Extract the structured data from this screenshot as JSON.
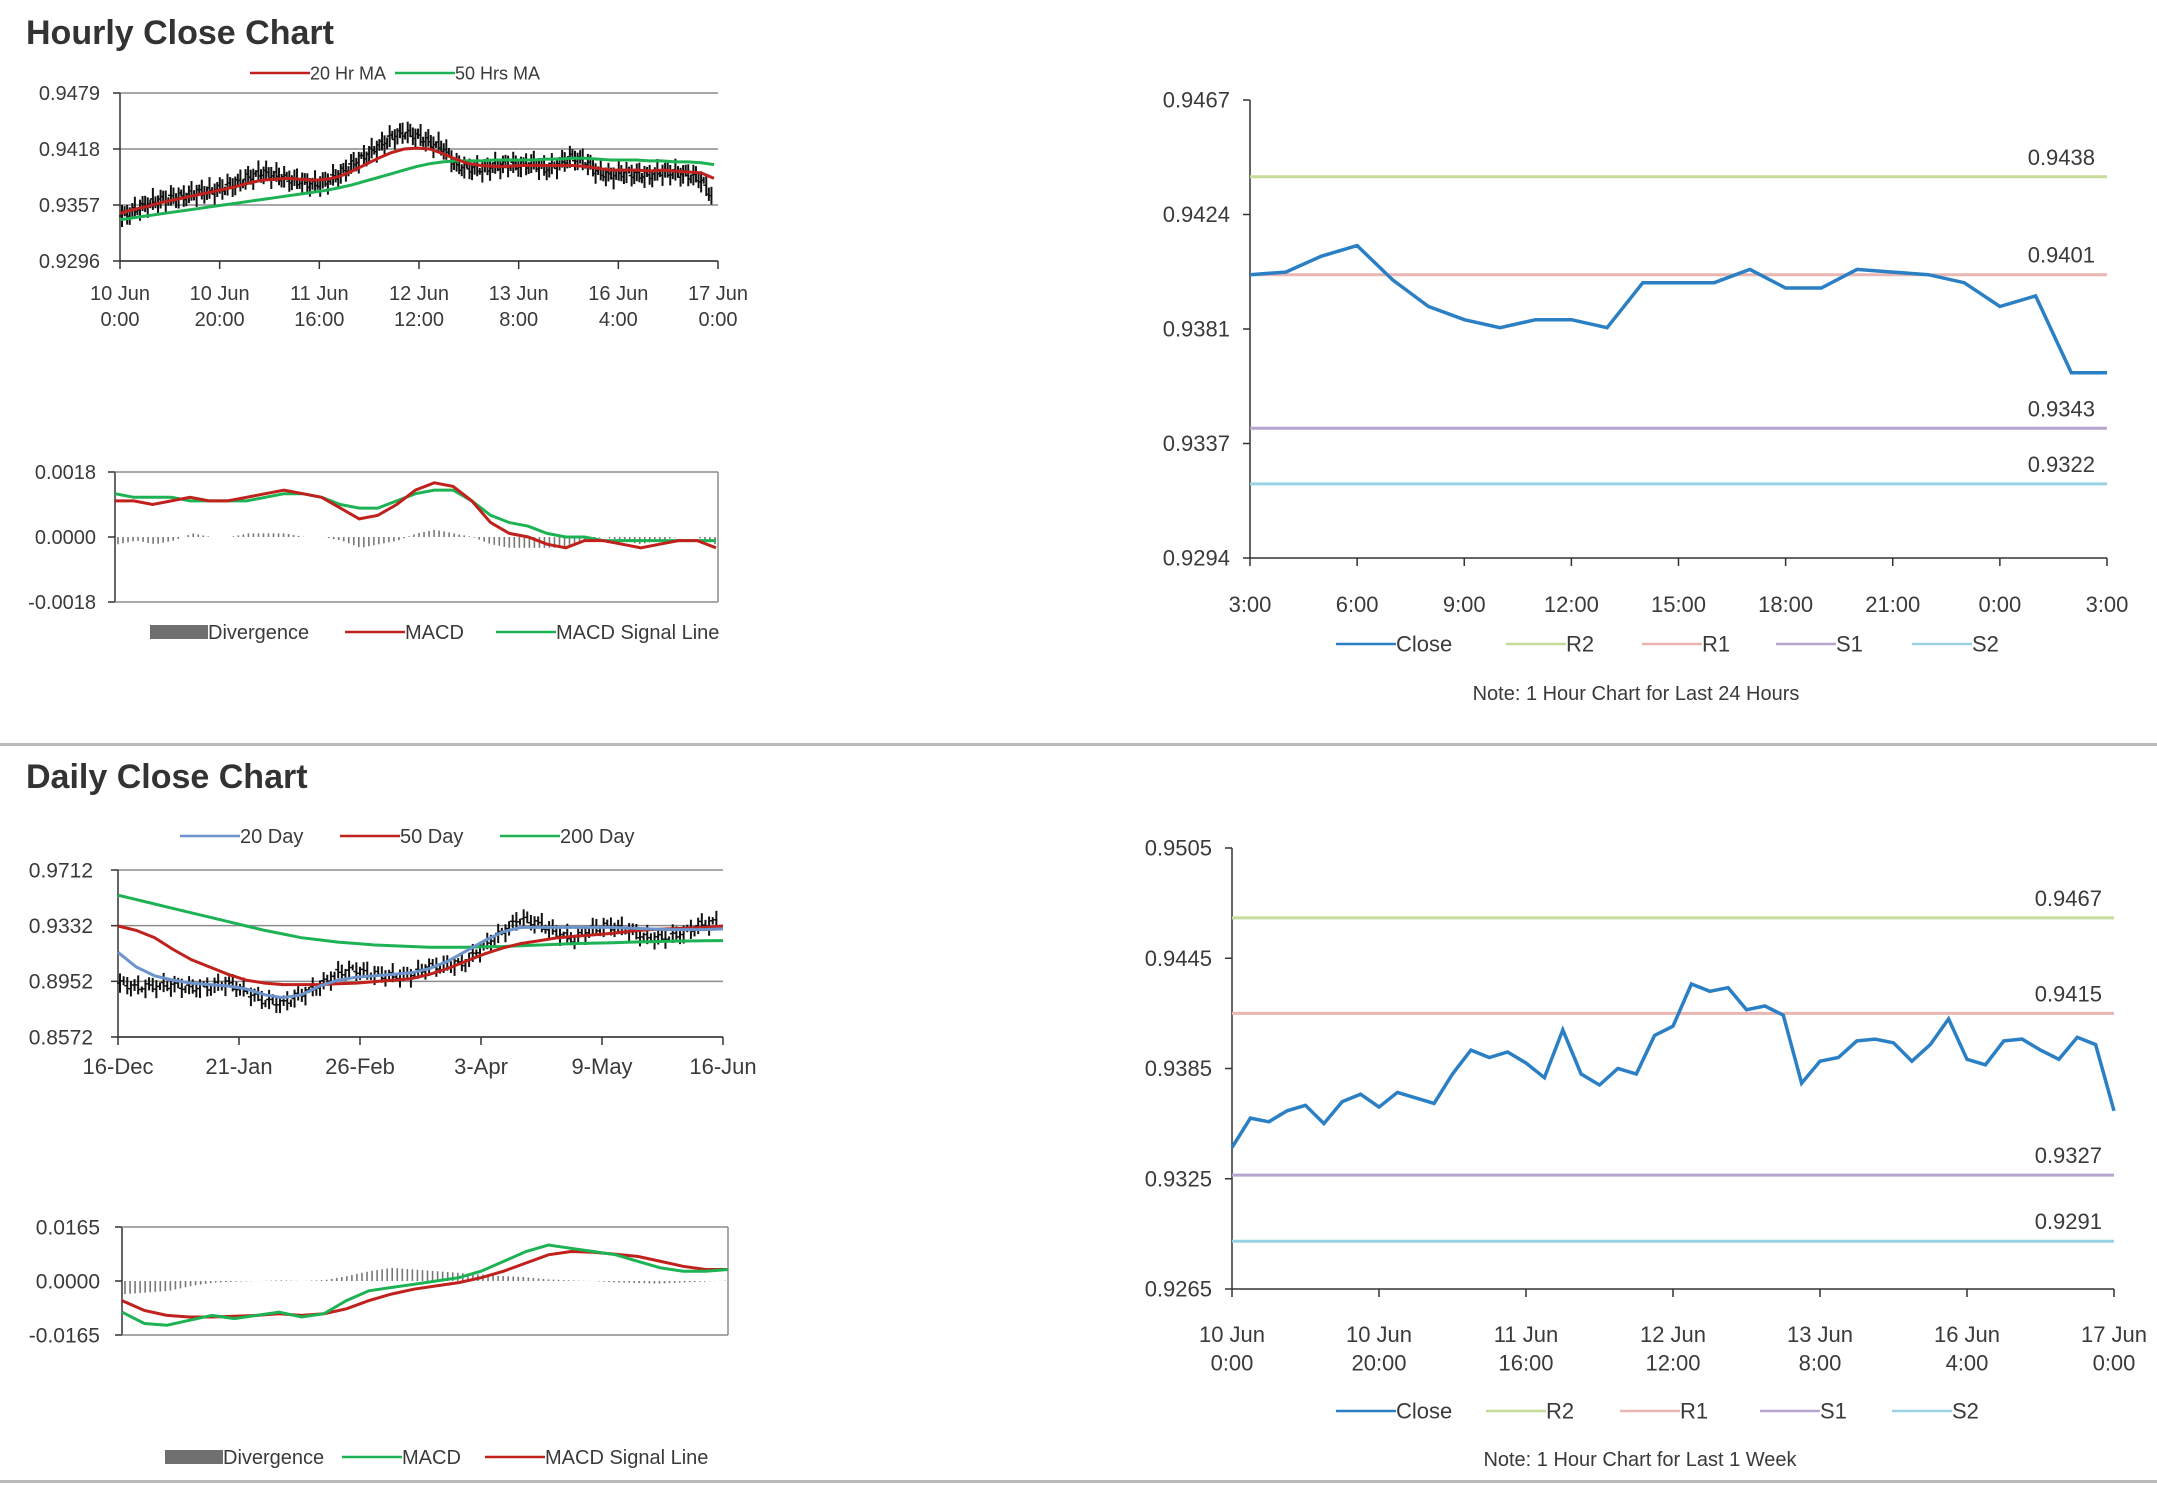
{
  "sections": {
    "hourly_title": "Hourly Close Chart",
    "daily_title": "Daily Close Chart"
  },
  "colors": {
    "red": "#c0211c",
    "green": "#1db254",
    "blue": "#2b7fc4",
    "lightblue": "#6c94cc",
    "price": "#111111",
    "r2": "#c5dc9b",
    "r1": "#eab6b3",
    "s1": "#b6a5cf",
    "s2": "#99d3e3",
    "grid": "#8c8c8c",
    "divergence": "#6f6f6f"
  },
  "chart_data": [
    {
      "id": "hourly_price",
      "type": "line",
      "description": "Hourly candlestick price with moving averages",
      "y_ticks": [
        "0.9479",
        "0.9418",
        "0.9357",
        "0.9296"
      ],
      "ylim": [
        0.9296,
        0.9479
      ],
      "x_ticks": [
        [
          "10 Jun",
          "0:00"
        ],
        [
          "10 Jun",
          "20:00"
        ],
        [
          "11 Jun",
          "16:00"
        ],
        [
          "12 Jun",
          "12:00"
        ],
        [
          "13 Jun",
          "8:00"
        ],
        [
          "16 Jun",
          "4:00"
        ],
        [
          "17 Jun",
          "0:00"
        ]
      ],
      "legend": [
        "20 Hr MA",
        "50 Hrs MA"
      ],
      "series": [
        {
          "name": "Price",
          "values": [
            0.9345,
            0.9351,
            0.9358,
            0.9362,
            0.9365,
            0.9367,
            0.9371,
            0.9372,
            0.9376,
            0.9381,
            0.9388,
            0.9392,
            0.9389,
            0.9385,
            0.9382,
            0.9379,
            0.9383,
            0.9391,
            0.9402,
            0.9411,
            0.9421,
            0.9431,
            0.9436,
            0.9432,
            0.9425,
            0.9419,
            0.94,
            0.9397,
            0.9396,
            0.9399,
            0.9401,
            0.94,
            0.9402,
            0.9396,
            0.9402,
            0.9409,
            0.9404,
            0.9393,
            0.9389,
            0.9392,
            0.939,
            0.9389,
            0.9393,
            0.9392,
            0.939,
            0.9385,
            0.9364
          ]
        },
        {
          "name": "20 Hr MA",
          "values": [
            0.9348,
            0.9352,
            0.9355,
            0.9359,
            0.9362,
            0.9365,
            0.9368,
            0.9371,
            0.9374,
            0.9377,
            0.9381,
            0.9384,
            0.9385,
            0.9386,
            0.9385,
            0.9384,
            0.9385,
            0.9388,
            0.9394,
            0.9401,
            0.9408,
            0.9414,
            0.9418,
            0.9419,
            0.9418,
            0.9413,
            0.9407,
            0.9402,
            0.94,
            0.9399,
            0.9399,
            0.94,
            0.94,
            0.94,
            0.94,
            0.94,
            0.9399,
            0.9397,
            0.9395,
            0.9395,
            0.9395,
            0.9394,
            0.9395,
            0.9394,
            0.9393,
            0.9392,
            0.9386
          ]
        },
        {
          "name": "50 Hrs MA",
          "values": [
            0.9341,
            0.9343,
            0.9345,
            0.9347,
            0.9349,
            0.9351,
            0.9353,
            0.9355,
            0.9357,
            0.9359,
            0.9361,
            0.9363,
            0.9365,
            0.9367,
            0.9369,
            0.9371,
            0.9373,
            0.9376,
            0.9379,
            0.9383,
            0.9387,
            0.9391,
            0.9395,
            0.9399,
            0.9402,
            0.9404,
            0.9405,
            0.9405,
            0.9405,
            0.9406,
            0.9406,
            0.9406,
            0.9406,
            0.9407,
            0.9407,
            0.9408,
            0.9408,
            0.9407,
            0.9406,
            0.9406,
            0.9406,
            0.9405,
            0.9405,
            0.9404,
            0.9404,
            0.9403,
            0.9401
          ]
        }
      ]
    },
    {
      "id": "hourly_macd",
      "type": "line",
      "y_ticks": [
        "0.0018",
        "0.0000",
        "-0.0018"
      ],
      "ylim": [
        -0.0018,
        0.0018
      ],
      "legend": [
        "Divergence",
        "MACD",
        "MACD Signal Line"
      ],
      "series": [
        {
          "name": "MACD",
          "values": [
            0.001,
            0.001,
            0.0009,
            0.001,
            0.0011,
            0.001,
            0.001,
            0.0011,
            0.0012,
            0.0013,
            0.0012,
            0.0011,
            0.0008,
            0.0005,
            0.0006,
            0.0009,
            0.0013,
            0.0015,
            0.0014,
            0.001,
            0.0004,
            0.0001,
            0.0,
            -0.0002,
            -0.0003,
            -0.0001,
            -0.0001,
            -0.0002,
            -0.0003,
            -0.0002,
            -0.0001,
            -0.0001,
            -0.0003
          ]
        },
        {
          "name": "MACD Signal Line",
          "values": [
            0.0012,
            0.0011,
            0.0011,
            0.0011,
            0.001,
            0.001,
            0.001,
            0.001,
            0.0011,
            0.0012,
            0.0012,
            0.0011,
            0.0009,
            0.0008,
            0.0008,
            0.001,
            0.0012,
            0.0013,
            0.0013,
            0.001,
            0.0006,
            0.0004,
            0.0003,
            0.0001,
            0.0,
            0.0,
            -0.0001,
            -0.0001,
            -0.0001,
            -0.0001,
            -0.0001,
            -0.0001,
            -0.0001
          ]
        },
        {
          "name": "Divergence",
          "values": [
            -0.0002,
            -0.0001,
            -0.0002,
            -0.0001,
            0.0001,
            0.0,
            0.0,
            0.0001,
            0.0001,
            0.0001,
            0.0,
            0.0,
            -0.0001,
            -0.0003,
            -0.0002,
            -0.0001,
            0.0001,
            0.0002,
            0.0001,
            0.0,
            -0.0002,
            -0.0003,
            -0.0003,
            -0.0003,
            -0.0003,
            -0.0001,
            0.0,
            -0.0001,
            -0.0002,
            -0.0001,
            0.0,
            0.0,
            -0.0002
          ]
        }
      ]
    },
    {
      "id": "hourly_24h",
      "type": "line",
      "y_ticks": [
        "0.9467",
        "0.9424",
        "0.9381",
        "0.9337",
        "0.9294"
      ],
      "ylim": [
        0.9294,
        0.9467
      ],
      "x_ticks": [
        "3:00",
        "6:00",
        "9:00",
        "12:00",
        "15:00",
        "18:00",
        "21:00",
        "0:00",
        "3:00"
      ],
      "legend": [
        "Close",
        "R2",
        "R1",
        "S1",
        "S2"
      ],
      "note": "Note: 1 Hour Chart for Last 24 Hours",
      "levels": {
        "R2": "0.9438",
        "R1": "0.9401",
        "S1": "0.9343",
        "S2": "0.9322"
      },
      "series": [
        {
          "name": "Close",
          "values": [
            0.9401,
            0.9402,
            0.9408,
            0.9412,
            0.9399,
            0.9389,
            0.9384,
            0.9381,
            0.9384,
            0.9384,
            0.9381,
            0.9398,
            0.9398,
            0.9398,
            0.9403,
            0.9396,
            0.9396,
            0.9403,
            0.9402,
            0.9401,
            0.9398,
            0.9389,
            0.9393,
            0.9364,
            0.9364
          ]
        }
      ]
    },
    {
      "id": "daily_price",
      "type": "line",
      "y_ticks": [
        "0.9712",
        "0.9332",
        "0.8952",
        "0.8572"
      ],
      "ylim": [
        0.8572,
        0.9712
      ],
      "x_ticks": [
        "16-Dec",
        "21-Jan",
        "26-Feb",
        "3-Apr",
        "9-May",
        "16-Jun"
      ],
      "legend": [
        "20 Day",
        "50 Day",
        "200 Day"
      ],
      "series": [
        {
          "name": "Price",
          "values": [
            0.894,
            0.891,
            0.892,
            0.8925,
            0.8905,
            0.8915,
            0.894,
            0.888,
            0.882,
            0.88,
            0.886,
            0.892,
            0.901,
            0.903,
            0.9,
            0.899,
            0.899,
            0.905,
            0.906,
            0.908,
            0.919,
            0.928,
            0.938,
            0.935,
            0.929,
            0.924,
            0.931,
            0.933,
            0.93,
            0.925,
            0.925,
            0.928,
            0.934,
            0.936
          ]
        },
        {
          "name": "20 Day",
          "values": [
            0.915,
            0.905,
            0.899,
            0.896,
            0.894,
            0.893,
            0.892,
            0.89,
            0.886,
            0.884,
            0.886,
            0.892,
            0.896,
            0.898,
            0.899,
            0.9,
            0.901,
            0.904,
            0.909,
            0.916,
            0.923,
            0.929,
            0.932,
            0.932,
            0.932,
            0.932,
            0.932,
            0.932,
            0.9315,
            0.931,
            0.9305,
            0.9305,
            0.9305,
            0.931
          ]
        },
        {
          "name": "50 Day",
          "values": [
            0.933,
            0.93,
            0.925,
            0.917,
            0.91,
            0.905,
            0.9,
            0.896,
            0.894,
            0.893,
            0.893,
            0.893,
            0.8935,
            0.894,
            0.895,
            0.896,
            0.897,
            0.9,
            0.904,
            0.909,
            0.914,
            0.918,
            0.921,
            0.923,
            0.925,
            0.926,
            0.927,
            0.928,
            0.9295,
            0.9305,
            0.931,
            0.9315,
            0.932,
            0.933
          ]
        },
        {
          "name": "200 Day",
          "values": [
            0.954,
            0.951,
            0.948,
            0.945,
            0.942,
            0.939,
            0.936,
            0.933,
            0.93,
            0.9275,
            0.925,
            0.9235,
            0.922,
            0.921,
            0.92,
            0.9195,
            0.919,
            0.9185,
            0.9185,
            0.9185,
            0.9188,
            0.919,
            0.9195,
            0.92,
            0.9205,
            0.921,
            0.9213,
            0.9216,
            0.922,
            0.9222,
            0.9225,
            0.9227,
            0.9229,
            0.923
          ]
        }
      ]
    },
    {
      "id": "daily_macd",
      "type": "line",
      "y_ticks": [
        "0.0165",
        "0.0000",
        "-0.0165"
      ],
      "ylim": [
        -0.0165,
        0.0165
      ],
      "legend": [
        "Divergence",
        "MACD",
        "MACD Signal Line"
      ],
      "series": [
        {
          "name": "MACD",
          "values": [
            -0.0095,
            -0.013,
            -0.0135,
            -0.012,
            -0.0105,
            -0.0115,
            -0.0105,
            -0.0095,
            -0.011,
            -0.01,
            -0.006,
            -0.003,
            -0.002,
            -0.001,
            0.0,
            0.001,
            0.003,
            0.006,
            0.009,
            0.011,
            0.01,
            0.009,
            0.008,
            0.006,
            0.004,
            0.003,
            0.003,
            0.0035
          ]
        },
        {
          "name": "MACD Signal Line",
          "values": [
            -0.006,
            -0.009,
            -0.0105,
            -0.011,
            -0.011,
            -0.0108,
            -0.0105,
            -0.01,
            -0.0105,
            -0.01,
            -0.0085,
            -0.006,
            -0.004,
            -0.0025,
            -0.0015,
            -0.0005,
            0.001,
            0.003,
            0.0055,
            0.008,
            0.009,
            0.0088,
            0.0082,
            0.0075,
            0.006,
            0.0045,
            0.0035,
            0.0035
          ]
        },
        {
          "name": "Divergence",
          "values": [
            -0.004,
            -0.0035,
            -0.003,
            -0.0015,
            -0.0005,
            -0.0002,
            0.0,
            0.0002,
            0.0,
            0.0003,
            0.0015,
            0.003,
            0.004,
            0.0035,
            0.003,
            0.0025,
            0.002,
            0.0015,
            0.0012,
            0.0005,
            0.0002,
            0.0,
            -0.0004,
            -0.0006,
            -0.0008,
            -0.0005,
            -0.0002,
            0.0001
          ]
        }
      ]
    },
    {
      "id": "daily_week",
      "type": "line",
      "y_ticks": [
        "0.9505",
        "0.9445",
        "0.9385",
        "0.9325",
        "0.9265"
      ],
      "ylim": [
        0.9265,
        0.9505
      ],
      "x_ticks": [
        [
          "10 Jun",
          "0:00"
        ],
        [
          "10 Jun",
          "20:00"
        ],
        [
          "11 Jun",
          "16:00"
        ],
        [
          "12 Jun",
          "12:00"
        ],
        [
          "13 Jun",
          "8:00"
        ],
        [
          "16 Jun",
          "4:00"
        ],
        [
          "17 Jun",
          "0:00"
        ]
      ],
      "legend": [
        "Close",
        "R2",
        "R1",
        "S1",
        "S2"
      ],
      "note": "Note: 1 Hour Chart for Last 1 Week",
      "levels": {
        "R2": "0.9467",
        "R1": "0.9415",
        "S1": "0.9327",
        "S2": "0.9291"
      },
      "series": [
        {
          "name": "Close",
          "values": [
            0.9342,
            0.9358,
            0.9356,
            0.9362,
            0.9365,
            0.9355,
            0.9367,
            0.9371,
            0.9364,
            0.9372,
            0.9369,
            0.9366,
            0.9382,
            0.9395,
            0.9391,
            0.9394,
            0.9388,
            0.938,
            0.9406,
            0.9382,
            0.9376,
            0.9385,
            0.9382,
            0.9403,
            0.9408,
            0.9431,
            0.9427,
            0.9429,
            0.9417,
            0.9419,
            0.9414,
            0.9377,
            0.9389,
            0.9391,
            0.94,
            0.9401,
            0.9399,
            0.9389,
            0.9398,
            0.9412,
            0.939,
            0.9387,
            0.94,
            0.9401,
            0.9395,
            0.939,
            0.9402,
            0.9398,
            0.9362
          ]
        }
      ]
    }
  ]
}
